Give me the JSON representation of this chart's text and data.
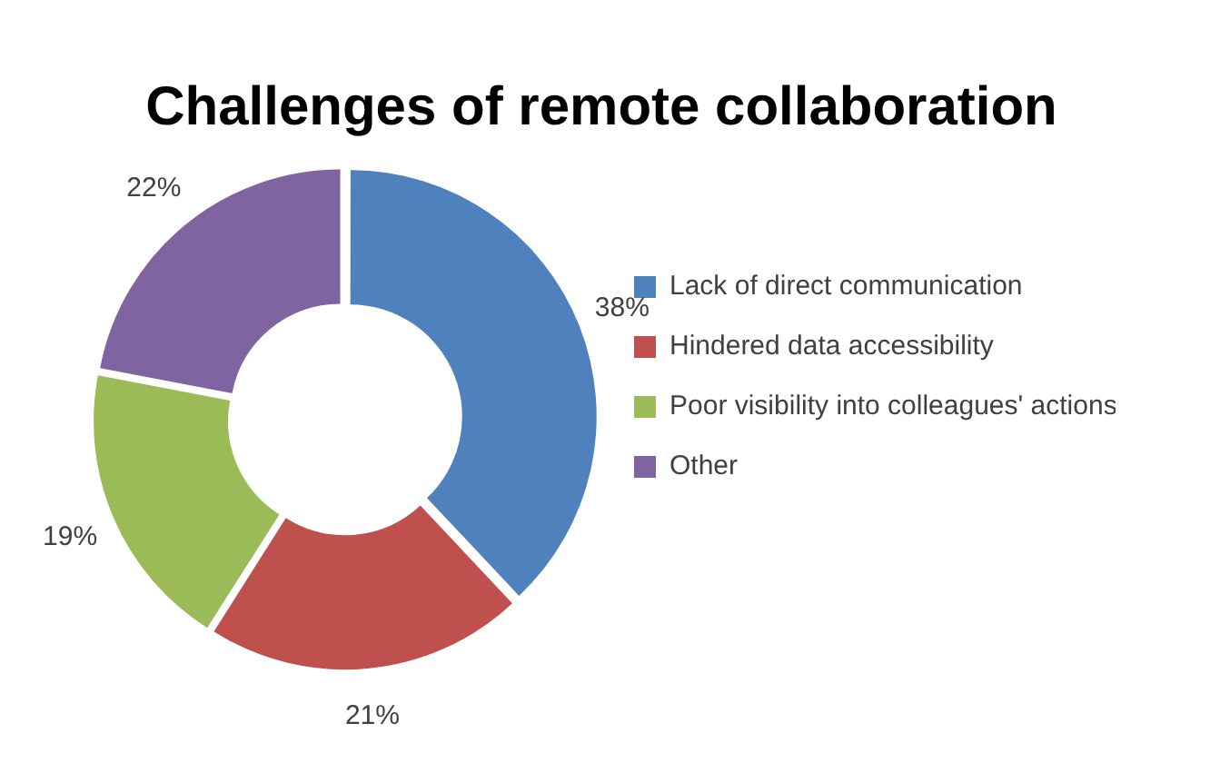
{
  "chart_data": {
    "type": "donut",
    "title": "Challenges of remote collaboration",
    "categories": [
      "Lack of direct communication",
      "Hindered data accessibility",
      "Poor visibility into colleagues' actions",
      "Other"
    ],
    "values": [
      38,
      21,
      19,
      22
    ],
    "colors": [
      "#4f81bd",
      "#c0504d",
      "#9bbb59",
      "#8064a2"
    ],
    "value_labels": [
      "38%",
      "21%",
      "19%",
      "22%"
    ],
    "legend": "right"
  }
}
